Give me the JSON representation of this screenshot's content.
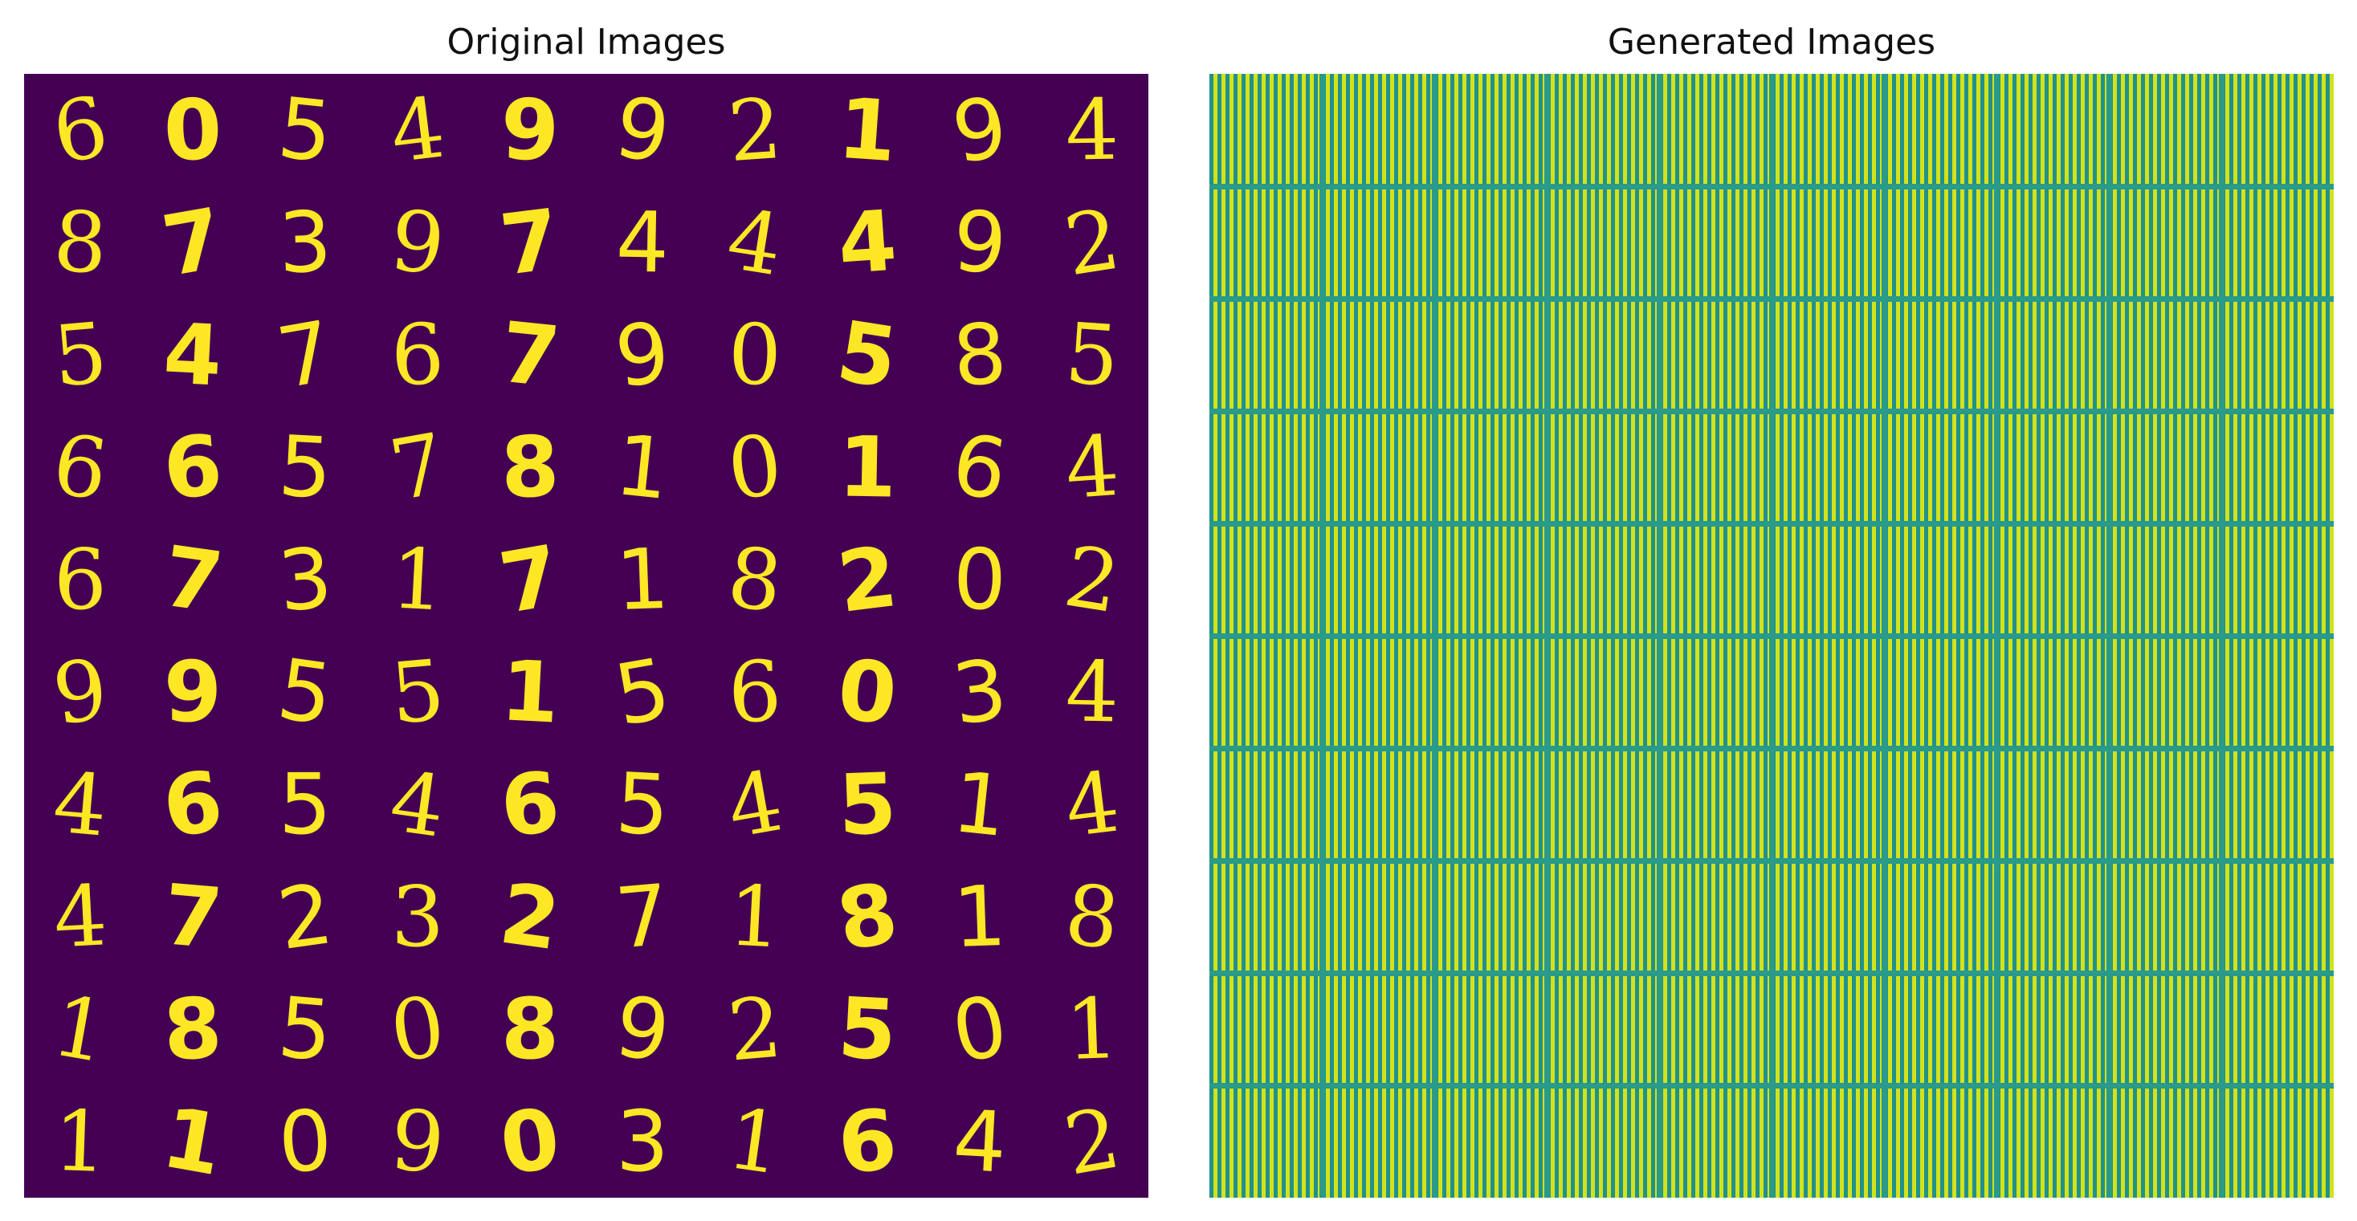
{
  "titles": {
    "left": "Original Images",
    "right": "Generated Images"
  },
  "colors": {
    "background_dark": "#440154",
    "foreground_yellow": "#fde725",
    "teal": "#21918c",
    "lime": "#d2e21b"
  },
  "original_digits": [
    [
      "6",
      "0",
      "5",
      "4",
      "9",
      "9",
      "2",
      "1",
      "9",
      "4"
    ],
    [
      "8",
      "7",
      "3",
      "9",
      "7",
      "4",
      "4",
      "4",
      "9",
      "2"
    ],
    [
      "5",
      "4",
      "7",
      "6",
      "7",
      "9",
      "0",
      "5",
      "8",
      "5"
    ],
    [
      "6",
      "6",
      "5",
      "7",
      "8",
      "1",
      "0",
      "1",
      "6",
      "4"
    ],
    [
      "6",
      "7",
      "3",
      "1",
      "7",
      "1",
      "8",
      "2",
      "0",
      "2"
    ],
    [
      "9",
      "9",
      "5",
      "5",
      "1",
      "5",
      "6",
      "0",
      "3",
      "4"
    ],
    [
      "4",
      "6",
      "5",
      "4",
      "6",
      "5",
      "4",
      "5",
      "1",
      "4"
    ],
    [
      "4",
      "7",
      "2",
      "3",
      "2",
      "7",
      "1",
      "8",
      "1",
      "8"
    ],
    [
      "1",
      "8",
      "5",
      "0",
      "8",
      "9",
      "2",
      "5",
      "0",
      "1"
    ],
    [
      "1",
      "1",
      "0",
      "9",
      "0",
      "3",
      "1",
      "6",
      "4",
      "2"
    ]
  ],
  "generated_grid": {
    "rows": 10,
    "cols": 10
  }
}
